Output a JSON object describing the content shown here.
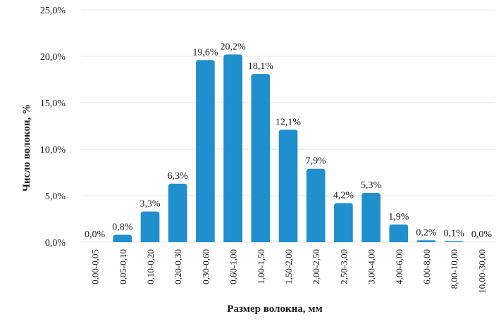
{
  "chart_data": {
    "type": "bar",
    "title": "",
    "xlabel": "Размер волокна, мм",
    "ylabel": "Число волокон, %",
    "ylim": [
      0,
      25
    ],
    "yticks": [
      {
        "value": 0,
        "label": "0,0%"
      },
      {
        "value": 5,
        "label": "5,0%"
      },
      {
        "value": 10,
        "label": "10,0%"
      },
      {
        "value": 15,
        "label": "15,0%"
      },
      {
        "value": 20,
        "label": "20,0%"
      },
      {
        "value": 25,
        "label": "25,0%"
      }
    ],
    "grid": true,
    "legend": "none",
    "bar_color": "#1f8fce",
    "grid_color": "#e6e6e6",
    "categories": [
      "0,00-0,05",
      "0,05-0,10",
      "0,10-0,20",
      "0,20-0,30",
      "0,30-0,60",
      "0,60-1,00",
      "1,00-1,50",
      "1,50-2,00",
      "2,00-2,50",
      "2,50-3,00",
      "3,00-4,00",
      "4,00-6,00",
      "6,00-8,00",
      "8,00-10,00",
      "10,00-30,00"
    ],
    "values": [
      0.0,
      0.8,
      3.3,
      6.3,
      19.6,
      20.2,
      18.1,
      12.1,
      7.9,
      4.2,
      5.3,
      1.9,
      0.2,
      0.1,
      0.0
    ],
    "data_labels": [
      "0,0%",
      "0,8%",
      "3,3%",
      "6,3%",
      "19,6%",
      "20,2%",
      "18,1%",
      "12,1%",
      "7,9%",
      "4,2%",
      "5,3%",
      "1,9%",
      "0,2%",
      "0,1%",
      "0,0%"
    ]
  }
}
